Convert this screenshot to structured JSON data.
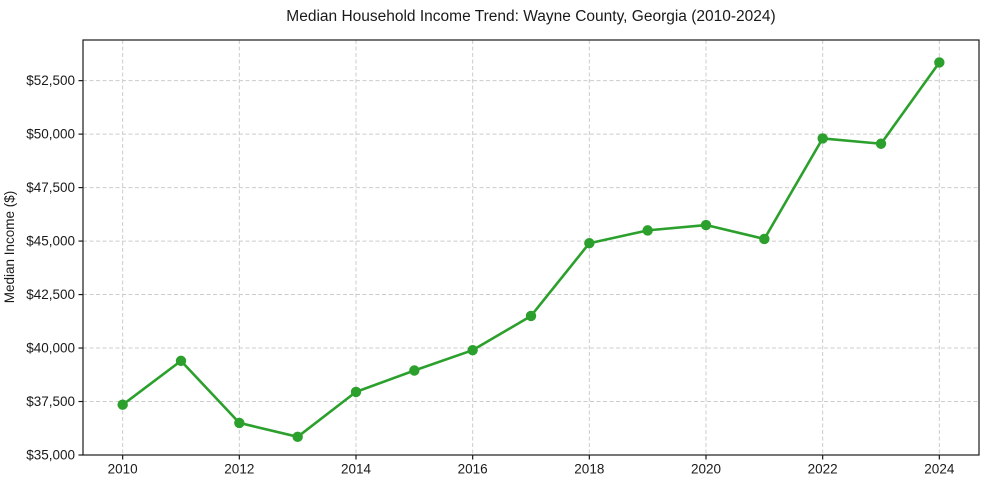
{
  "chart_data": {
    "type": "line",
    "title": "Median Household Income Trend: Wayne County, Georgia (2010-2024)",
    "xlabel": "",
    "ylabel": "Median Income ($)",
    "x": [
      2010,
      2011,
      2012,
      2013,
      2014,
      2015,
      2016,
      2017,
      2018,
      2019,
      2020,
      2021,
      2022,
      2023,
      2024
    ],
    "series": [
      {
        "name": "Median Household Income",
        "values": [
          37350,
          39400,
          36500,
          35850,
          37950,
          38950,
          39900,
          41500,
          44900,
          45500,
          45750,
          45100,
          49800,
          49550,
          53350
        ]
      }
    ],
    "x_ticks": [
      2010,
      2012,
      2014,
      2016,
      2018,
      2020,
      2022,
      2024
    ],
    "x_tick_labels": [
      "2010",
      "2012",
      "2014",
      "2016",
      "2018",
      "2020",
      "2022",
      "2024"
    ],
    "y_ticks": [
      35000,
      37500,
      40000,
      42500,
      45000,
      47500,
      50000,
      52500
    ],
    "y_tick_labels": [
      "$35,000",
      "$37,500",
      "$40,000",
      "$42,500",
      "$45,000",
      "$47,500",
      "$50,000",
      "$52,500"
    ],
    "xlim": [
      2009.32,
      2024.68
    ],
    "ylim": [
      35000,
      54400
    ],
    "grid": true,
    "legend": false,
    "line_color": "#2ca02c",
    "marker": "circle",
    "grid_color": "#cccccc",
    "axis_color": "#1a1a1a",
    "background_color": "#ffffff"
  }
}
